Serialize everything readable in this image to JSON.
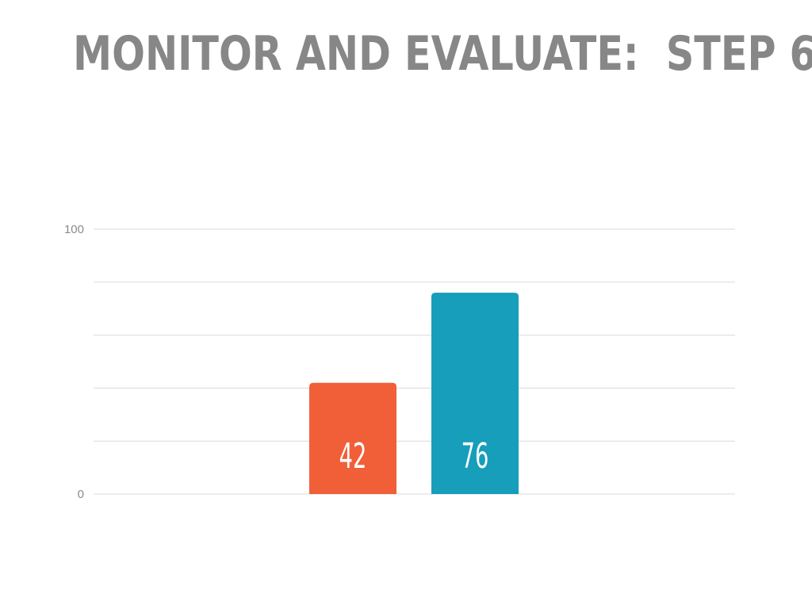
{
  "slide": {
    "title": "MONITOR AND EVALUATE:  STEP 6"
  },
  "chart_data": {
    "type": "bar",
    "title": "",
    "xlabel": "",
    "ylabel": "",
    "ylim": [
      0,
      100
    ],
    "y_ticks_labeled": [
      0,
      100
    ],
    "gridlines": [
      0,
      20,
      40,
      60,
      80,
      100
    ],
    "grid": true,
    "legend": "none",
    "bars": [
      {
        "value": 42,
        "label": "42",
        "color": "#f05f38"
      },
      {
        "value": 76,
        "label": "76",
        "color": "#169ebb"
      }
    ]
  }
}
